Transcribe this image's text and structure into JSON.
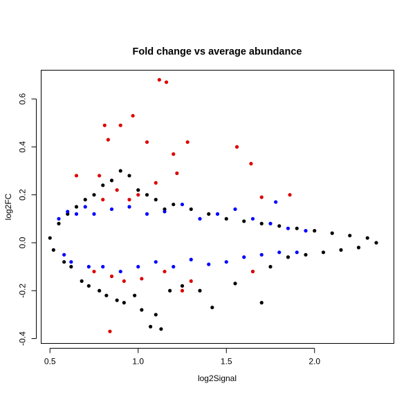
{
  "chart_data": {
    "type": "scatter",
    "title": "Fold change vs average abundance",
    "xlabel": "log2Signal",
    "ylabel": "log2FC",
    "xlim": [
      0.45,
      2.45
    ],
    "ylim": [
      -0.42,
      0.72
    ],
    "x_ticks": [
      0.5,
      1.0,
      1.5,
      2.0
    ],
    "x_tick_labels": [
      "0.5",
      "1.0",
      "1.5",
      "2.0"
    ],
    "y_ticks": [
      -0.4,
      -0.2,
      0.0,
      0.2,
      0.4,
      0.6
    ],
    "y_tick_labels": [
      "-0.4",
      "-0.2",
      "0.0",
      "0.2",
      "0.4",
      "0.6"
    ],
    "grid": false,
    "legend": "none",
    "series": [
      {
        "color": "#000000",
        "points": [
          [
            0.5,
            0.02
          ],
          [
            0.52,
            -0.03
          ],
          [
            0.55,
            0.08
          ],
          [
            0.58,
            -0.08
          ],
          [
            0.6,
            0.12
          ],
          [
            0.62,
            -0.1
          ],
          [
            0.65,
            0.15
          ],
          [
            0.68,
            -0.16
          ],
          [
            0.7,
            0.18
          ],
          [
            0.72,
            -0.18
          ],
          [
            0.75,
            0.2
          ],
          [
            0.78,
            -0.2
          ],
          [
            0.8,
            0.24
          ],
          [
            0.82,
            -0.22
          ],
          [
            0.85,
            0.26
          ],
          [
            0.88,
            -0.24
          ],
          [
            0.9,
            0.3
          ],
          [
            0.92,
            -0.25
          ],
          [
            0.95,
            0.28
          ],
          [
            0.98,
            -0.22
          ],
          [
            1.0,
            0.22
          ],
          [
            1.02,
            -0.28
          ],
          [
            1.05,
            0.2
          ],
          [
            1.07,
            -0.35
          ],
          [
            1.1,
            0.18
          ],
          [
            1.1,
            -0.3
          ],
          [
            1.13,
            -0.36
          ],
          [
            1.15,
            0.14
          ],
          [
            1.18,
            -0.2
          ],
          [
            1.2,
            0.16
          ],
          [
            1.25,
            -0.18
          ],
          [
            1.3,
            0.14
          ],
          [
            1.35,
            -0.2
          ],
          [
            1.4,
            0.12
          ],
          [
            1.42,
            -0.27
          ],
          [
            1.5,
            0.1
          ],
          [
            1.55,
            -0.17
          ],
          [
            1.6,
            0.09
          ],
          [
            1.65,
            -0.12
          ],
          [
            1.7,
            0.08
          ],
          [
            1.7,
            -0.25
          ],
          [
            1.75,
            -0.1
          ],
          [
            1.8,
            0.07
          ],
          [
            1.85,
            -0.06
          ],
          [
            1.9,
            0.06
          ],
          [
            1.95,
            -0.05
          ],
          [
            2.0,
            0.05
          ],
          [
            2.05,
            -0.04
          ],
          [
            2.1,
            0.04
          ],
          [
            2.15,
            -0.03
          ],
          [
            2.2,
            0.03
          ],
          [
            2.25,
            -0.02
          ],
          [
            2.3,
            0.02
          ],
          [
            2.35,
            0.0
          ]
        ]
      },
      {
        "color": "#0000ff",
        "points": [
          [
            0.55,
            0.1
          ],
          [
            0.58,
            -0.05
          ],
          [
            0.6,
            0.13
          ],
          [
            0.62,
            -0.08
          ],
          [
            0.65,
            0.12
          ],
          [
            0.7,
            0.15
          ],
          [
            0.72,
            -0.1
          ],
          [
            0.75,
            0.12
          ],
          [
            0.8,
            -0.1
          ],
          [
            0.85,
            0.14
          ],
          [
            0.9,
            -0.12
          ],
          [
            0.95,
            0.15
          ],
          [
            1.0,
            -0.1
          ],
          [
            1.05,
            0.12
          ],
          [
            1.1,
            -0.08
          ],
          [
            1.15,
            0.13
          ],
          [
            1.2,
            -0.1
          ],
          [
            1.25,
            0.16
          ],
          [
            1.3,
            -0.07
          ],
          [
            1.35,
            0.1
          ],
          [
            1.4,
            -0.09
          ],
          [
            1.45,
            0.12
          ],
          [
            1.5,
            -0.08
          ],
          [
            1.55,
            0.14
          ],
          [
            1.6,
            -0.06
          ],
          [
            1.65,
            0.1
          ],
          [
            1.7,
            -0.05
          ],
          [
            1.75,
            0.08
          ],
          [
            1.78,
            0.17
          ],
          [
            1.8,
            -0.04
          ],
          [
            1.85,
            0.06
          ],
          [
            1.9,
            -0.04
          ],
          [
            1.95,
            0.05
          ]
        ]
      },
      {
        "color": "#dd0000",
        "points": [
          [
            0.65,
            0.28
          ],
          [
            0.75,
            -0.12
          ],
          [
            0.78,
            0.28
          ],
          [
            0.8,
            0.18
          ],
          [
            0.81,
            0.49
          ],
          [
            0.83,
            0.43
          ],
          [
            0.84,
            -0.37
          ],
          [
            0.85,
            -0.14
          ],
          [
            0.88,
            0.22
          ],
          [
            0.9,
            0.49
          ],
          [
            0.92,
            -0.16
          ],
          [
            0.95,
            0.18
          ],
          [
            0.97,
            0.53
          ],
          [
            1.0,
            0.2
          ],
          [
            1.02,
            -0.15
          ],
          [
            1.05,
            0.42
          ],
          [
            1.1,
            0.25
          ],
          [
            1.12,
            0.68
          ],
          [
            1.15,
            -0.12
          ],
          [
            1.16,
            0.67
          ],
          [
            1.2,
            0.37
          ],
          [
            1.22,
            0.29
          ],
          [
            1.25,
            -0.2
          ],
          [
            1.28,
            0.42
          ],
          [
            1.3,
            -0.16
          ],
          [
            1.56,
            0.4
          ],
          [
            1.64,
            0.33
          ],
          [
            1.65,
            -0.12
          ],
          [
            1.7,
            0.19
          ],
          [
            1.86,
            0.2
          ]
        ]
      }
    ]
  }
}
